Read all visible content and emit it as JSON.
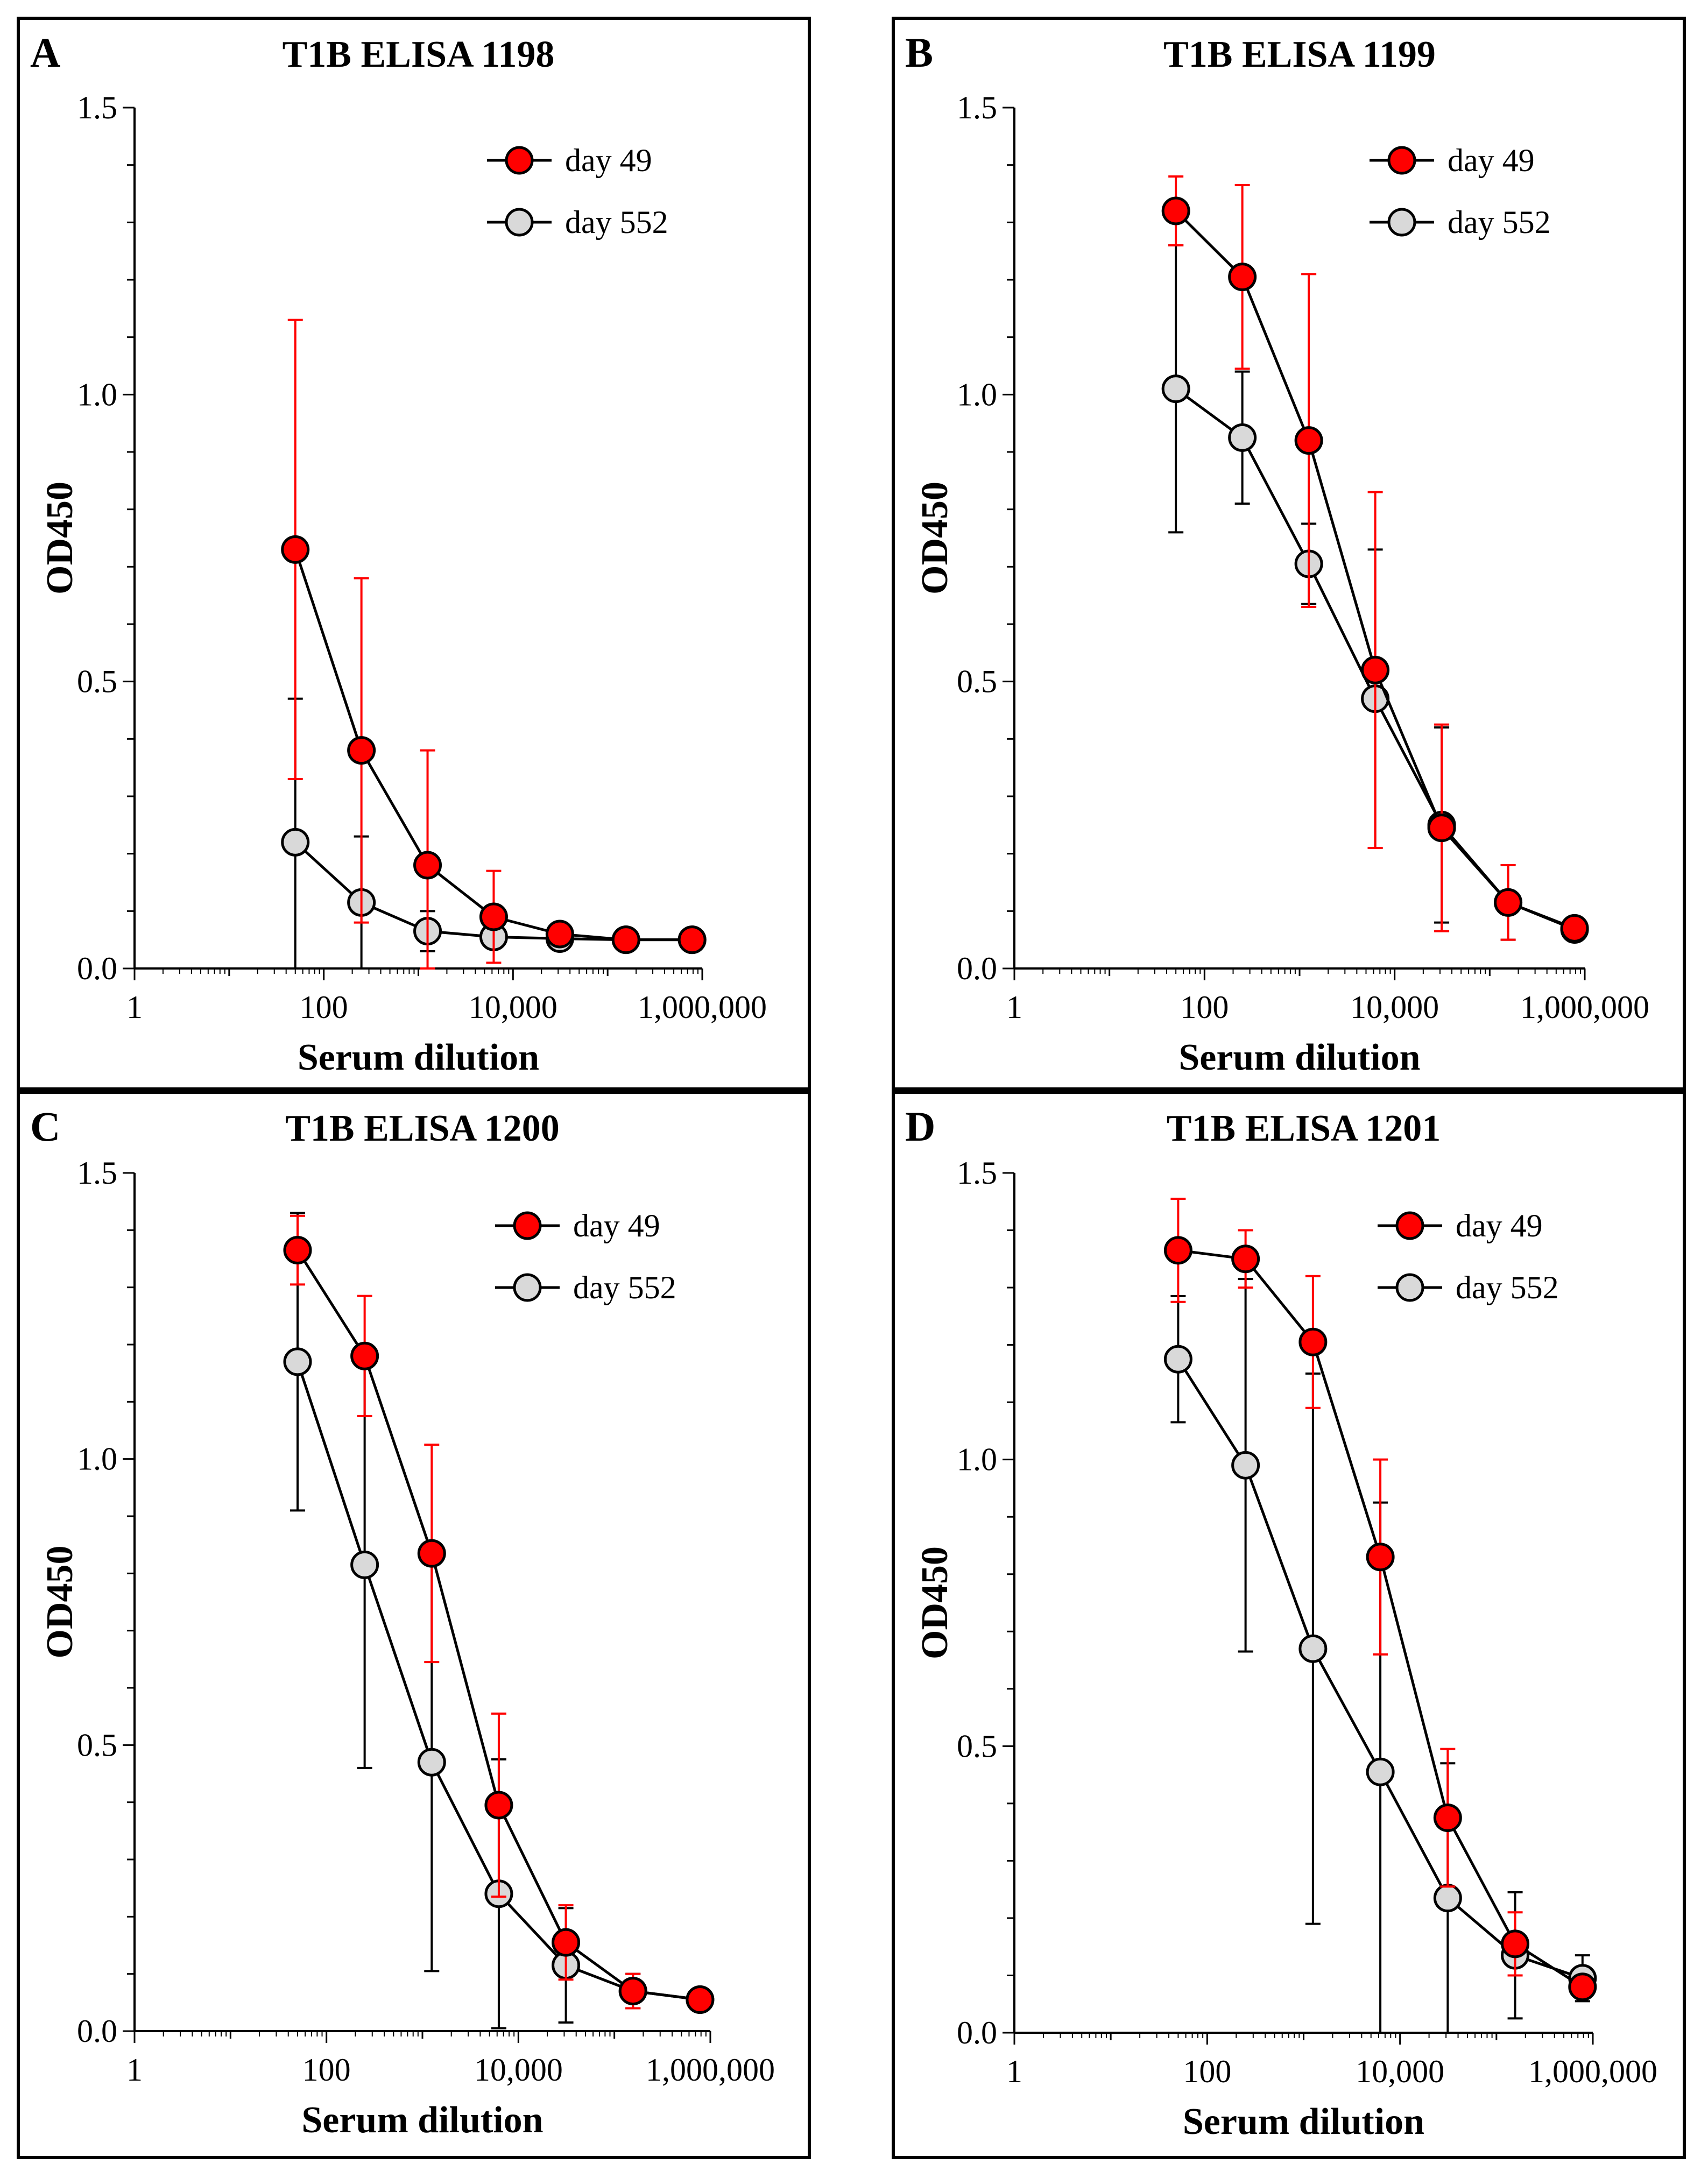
{
  "figure": {
    "colors": {
      "day49": "#ff0000",
      "day552": "#d9d9d9",
      "axis": "#000000",
      "marker_edge": "#000000"
    }
  },
  "chart_data": [
    {
      "type": "line",
      "panel": "A",
      "title": "T1B ELISA 1198",
      "xlabel": "Serum dilution",
      "ylabel": "OD450",
      "xscale": "log",
      "xlim": [
        1,
        1000000
      ],
      "ylim": [
        0,
        1.5
      ],
      "x_ticks": [
        1,
        100,
        10000,
        1000000
      ],
      "x_tick_labels": [
        "1",
        "100",
        "10,000",
        "1,000,000"
      ],
      "y_ticks": [
        0,
        0.5,
        1,
        1.5
      ],
      "y_tick_labels": [
        "0.0",
        "0.5",
        "1.0",
        "1.5"
      ],
      "legend_position": "top-right",
      "x": [
        50,
        250,
        1250,
        6250,
        31250,
        156250,
        781250
      ],
      "series": [
        {
          "name": "day 49",
          "color": "#ff0000",
          "values": [
            0.73,
            0.38,
            0.18,
            0.09,
            0.06,
            0.05,
            0.05
          ],
          "error": [
            0.4,
            0.3,
            0.2,
            0.08,
            0.01,
            0.005,
            0.005
          ]
        },
        {
          "name": "day 552",
          "color": "#d9d9d9",
          "values": [
            0.22,
            0.115,
            0.065,
            0.055,
            0.052,
            0.05,
            0.05
          ],
          "error": [
            0.25,
            0.115,
            0.035,
            0.005,
            0.005,
            0.005,
            0.005
          ]
        }
      ]
    },
    {
      "type": "line",
      "panel": "B",
      "title": "T1B ELISA 1199",
      "xlabel": "Serum dilution",
      "ylabel": "OD450",
      "xscale": "log",
      "xlim": [
        1,
        1000000
      ],
      "ylim": [
        0,
        1.5
      ],
      "x_ticks": [
        1,
        100,
        10000,
        1000000
      ],
      "x_tick_labels": [
        "1",
        "100",
        "10,000",
        "1,000,000"
      ],
      "y_ticks": [
        0,
        0.5,
        1,
        1.5
      ],
      "y_tick_labels": [
        "0.0",
        "0.5",
        "1.0",
        "1.5"
      ],
      "legend_position": "top-right",
      "x": [
        50,
        250,
        1250,
        6250,
        31250,
        156250,
        781250
      ],
      "series": [
        {
          "name": "day 49",
          "color": "#ff0000",
          "values": [
            1.32,
            1.205,
            0.92,
            0.52,
            0.245,
            0.115,
            0.07
          ],
          "error": [
            0.06,
            0.16,
            0.29,
            0.31,
            0.18,
            0.065,
            0.01
          ]
        },
        {
          "name": "day 552",
          "color": "#d9d9d9",
          "values": [
            1.01,
            0.925,
            0.705,
            0.47,
            0.25,
            0.115,
            0.068
          ],
          "error": [
            0.25,
            0.115,
            0.07,
            0.26,
            0.17,
            0.065,
            0.01
          ]
        }
      ]
    },
    {
      "type": "line",
      "panel": "C",
      "title": "T1B ELISA 1200",
      "xlabel": "Serum dilution",
      "ylabel": "OD450",
      "xscale": "log",
      "xlim": [
        1,
        1000000
      ],
      "ylim": [
        0,
        1.5
      ],
      "x_ticks": [
        1,
        100,
        10000,
        1000000
      ],
      "x_tick_labels": [
        "1",
        "100",
        "10,000",
        "1,000,000"
      ],
      "y_ticks": [
        0,
        0.5,
        1,
        1.5
      ],
      "y_tick_labels": [
        "0.0",
        "0.5",
        "1.0",
        "1.5"
      ],
      "legend_position": "top-right",
      "x": [
        50,
        250,
        1250,
        6250,
        31250,
        156250,
        781250
      ],
      "series": [
        {
          "name": "day 49",
          "color": "#ff0000",
          "values": [
            1.365,
            1.18,
            0.835,
            0.395,
            0.155,
            0.07,
            0.055
          ],
          "error": [
            0.06,
            0.105,
            0.19,
            0.16,
            0.065,
            0.03,
            0.005
          ]
        },
        {
          "name": "day 552",
          "color": "#d9d9d9",
          "values": [
            1.17,
            0.815,
            0.47,
            0.24,
            0.115,
            0.07,
            0.055
          ],
          "error": [
            0.26,
            0.355,
            0.365,
            0.235,
            0.1,
            0.03,
            0.005
          ]
        }
      ]
    },
    {
      "type": "line",
      "panel": "D",
      "title": "T1B ELISA 1201",
      "xlabel": "Serum dilution",
      "ylabel": "OD450",
      "xscale": "log",
      "xlim": [
        1,
        1000000
      ],
      "ylim": [
        0,
        1.5
      ],
      "x_ticks": [
        1,
        100,
        10000,
        1000000
      ],
      "x_tick_labels": [
        "1",
        "100",
        "10,000",
        "1,000,000"
      ],
      "y_ticks": [
        0,
        0.5,
        1,
        1.5
      ],
      "y_tick_labels": [
        "0.0",
        "0.5",
        "1.0",
        "1.5"
      ],
      "legend_position": "top-right",
      "x": [
        50,
        250,
        1250,
        6250,
        31250,
        156250,
        781250
      ],
      "series": [
        {
          "name": "day 49",
          "color": "#ff0000",
          "values": [
            1.365,
            1.35,
            1.205,
            0.83,
            0.375,
            0.155,
            0.08
          ],
          "error": [
            0.09,
            0.05,
            0.115,
            0.17,
            0.12,
            0.055,
            0.01
          ]
        },
        {
          "name": "day 552",
          "color": "#d9d9d9",
          "values": [
            1.175,
            0.99,
            0.67,
            0.455,
            0.235,
            0.135,
            0.095
          ],
          "error": [
            0.11,
            0.325,
            0.48,
            0.47,
            0.235,
            0.11,
            0.04
          ]
        }
      ]
    }
  ]
}
